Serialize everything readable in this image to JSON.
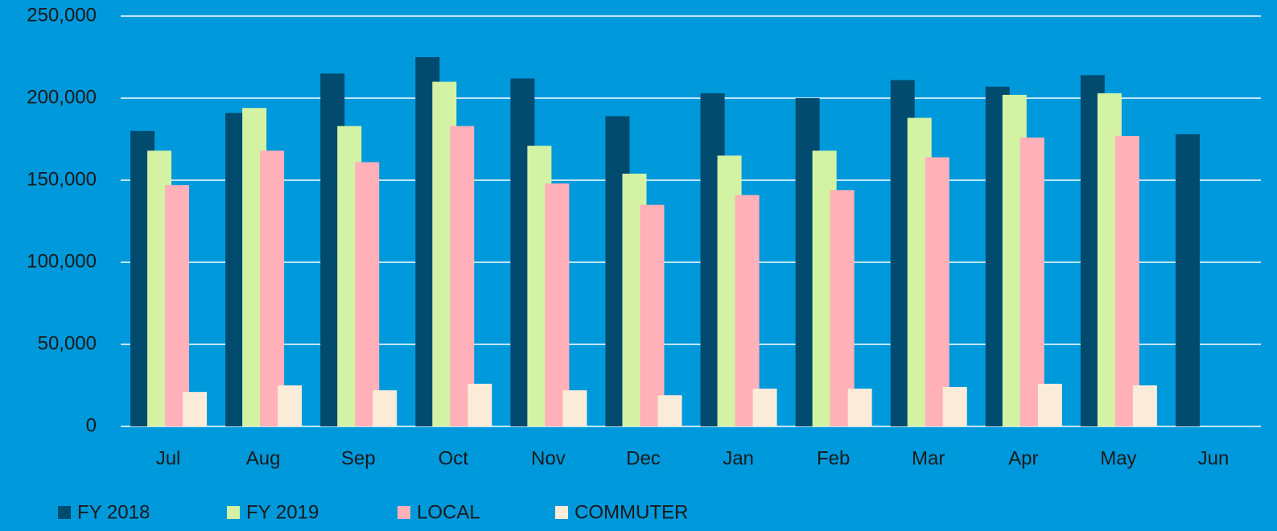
{
  "chart_data": {
    "type": "bar",
    "categories": [
      "Jul",
      "Aug",
      "Sep",
      "Oct",
      "Nov",
      "Dec",
      "Jan",
      "Feb",
      "Mar",
      "Apr",
      "May",
      "Jun"
    ],
    "series": [
      {
        "name": "FY 2018",
        "color": "#004b6e",
        "values": [
          180000,
          191000,
          215000,
          225000,
          212000,
          189000,
          203000,
          200000,
          211000,
          207000,
          214000,
          178000
        ]
      },
      {
        "name": "FY 2019",
        "color": "#d4f2a4",
        "values": [
          168000,
          194000,
          183000,
          210000,
          171000,
          154000,
          165000,
          168000,
          188000,
          202000,
          203000,
          null
        ]
      },
      {
        "name": "LOCAL",
        "color": "#ffb0b8",
        "values": [
          147000,
          168000,
          161000,
          183000,
          148000,
          135000,
          141000,
          144000,
          164000,
          176000,
          177000,
          null
        ]
      },
      {
        "name": "COMMUTER",
        "color": "#fbecd9",
        "values": [
          21000,
          25000,
          22000,
          26000,
          22000,
          19000,
          23000,
          23000,
          24000,
          26000,
          25000,
          null
        ]
      }
    ],
    "ylim": [
      0,
      250000
    ],
    "yticks": [
      0,
      {
        "value": 50000,
        "label": "50,000"
      },
      {
        "value": 100000,
        "label": "100,000"
      },
      {
        "value": 150000,
        "label": "150,000"
      },
      {
        "value": 200000,
        "label": "200,000"
      },
      {
        "value": 250000,
        "label": "250,000"
      }
    ],
    "grid": true,
    "legend": "bottom-left"
  }
}
